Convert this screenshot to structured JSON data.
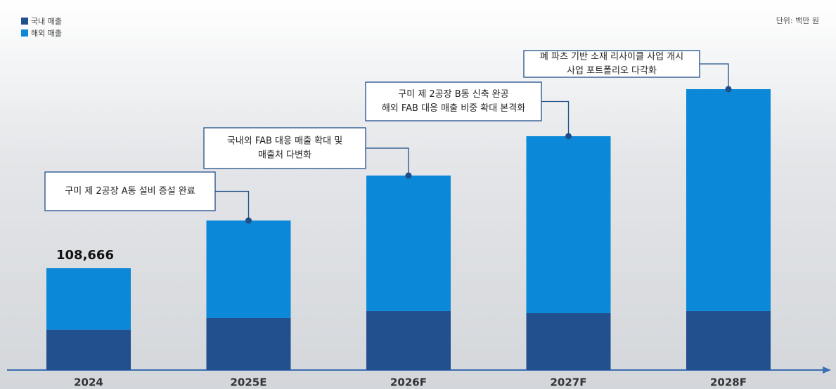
{
  "chart_data": {
    "type": "bar",
    "stacked": true,
    "unit": "단위: 백만 원",
    "categories": [
      "2024",
      "2025E",
      "2026F",
      "2027F",
      "2028F"
    ],
    "series": [
      {
        "name": "국내 매출",
        "color": "#22508f",
        "values": [
          43000,
          55500,
          63000,
          60700,
          63000
        ]
      },
      {
        "name": "해외 매출",
        "color": "#0b88d8",
        "values": [
          65666,
          104100,
          144600,
          188900,
          236800
        ]
      }
    ],
    "total_label": {
      "value": 108666,
      "label": "108,666"
    },
    "annotations": [
      {
        "lines": [
          "구미 제 2공장 A동 설비 증설 완료"
        ]
      },
      {
        "lines": [
          "국내외 FAB 대응 매출 확대 및",
          "매출처 다변화"
        ]
      },
      {
        "lines": [
          "구미 제 2공장 B동 신축 완공",
          "해외 FAB 대응 매출 비중 확대 본격화"
        ]
      },
      {
        "lines": [
          "폐 파츠 기반 소재 리사이클 사업 개시",
          "사업 포트폴리오 다각화"
        ]
      }
    ]
  }
}
